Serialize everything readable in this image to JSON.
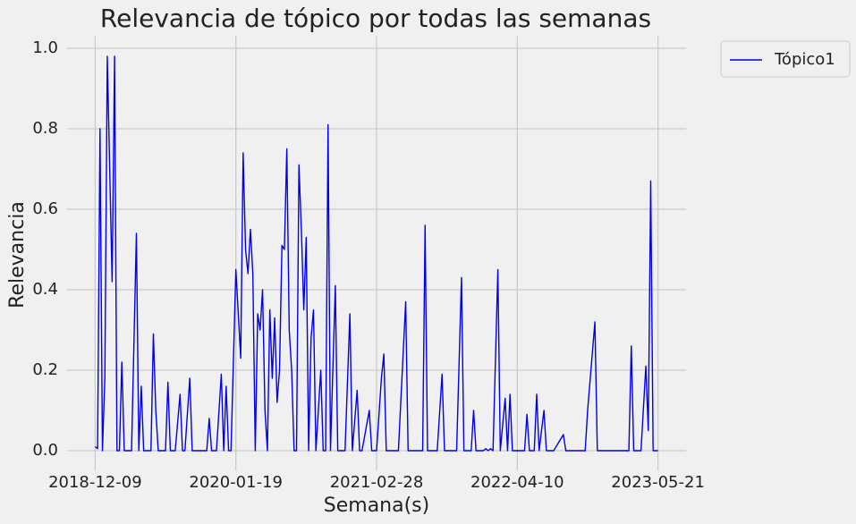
{
  "chart_data": {
    "type": "line",
    "title": "Relevancia de tópico por todas las semanas",
    "x_label": "Semana(s)",
    "y_label": "Relevancia",
    "x": [
      "2018-12-09",
      "2018-12-16",
      "2018-12-23",
      "2018-12-30",
      "2019-01-06",
      "2019-01-13",
      "2019-01-27",
      "2019-02-03",
      "2019-02-10",
      "2019-02-17",
      "2019-02-24",
      "2019-03-03",
      "2019-03-24",
      "2019-04-07",
      "2019-04-14",
      "2019-04-21",
      "2019-04-28",
      "2019-05-19",
      "2019-05-26",
      "2019-06-02",
      "2019-06-09",
      "2019-06-30",
      "2019-07-07",
      "2019-07-14",
      "2019-07-28",
      "2019-08-11",
      "2019-08-18",
      "2019-08-25",
      "2019-09-08",
      "2019-09-15",
      "2019-10-27",
      "2019-11-03",
      "2019-11-10",
      "2019-11-24",
      "2019-12-08",
      "2019-12-15",
      "2019-12-22",
      "2019-12-29",
      "2020-01-05",
      "2020-01-19",
      "2020-02-02",
      "2020-02-09",
      "2020-02-16",
      "2020-02-23",
      "2020-03-01",
      "2020-03-08",
      "2020-03-15",
      "2020-03-22",
      "2020-03-29",
      "2020-04-05",
      "2020-04-12",
      "2020-04-19",
      "2020-04-26",
      "2020-05-03",
      "2020-05-10",
      "2020-05-17",
      "2020-05-24",
      "2020-05-31",
      "2020-06-07",
      "2020-06-14",
      "2020-06-21",
      "2020-06-28",
      "2020-07-05",
      "2020-07-12",
      "2020-07-19",
      "2020-07-26",
      "2020-08-02",
      "2020-08-09",
      "2020-08-16",
      "2020-08-23",
      "2020-08-30",
      "2020-09-06",
      "2020-09-20",
      "2020-09-27",
      "2020-10-04",
      "2020-10-11",
      "2020-10-18",
      "2020-11-01",
      "2020-11-08",
      "2020-11-29",
      "2020-12-13",
      "2020-12-20",
      "2021-01-03",
      "2021-01-10",
      "2021-01-17",
      "2021-02-07",
      "2021-02-14",
      "2021-02-28",
      "2021-03-14",
      "2021-03-21",
      "2021-03-28",
      "2021-05-02",
      "2021-05-23",
      "2021-05-30",
      "2021-07-11",
      "2021-07-18",
      "2021-07-25",
      "2021-08-22",
      "2021-09-05",
      "2021-09-12",
      "2021-10-17",
      "2021-10-31",
      "2021-11-07",
      "2021-11-28",
      "2021-12-05",
      "2021-12-12",
      "2022-01-02",
      "2022-01-09",
      "2022-01-16",
      "2022-01-23",
      "2022-01-30",
      "2022-02-13",
      "2022-02-20",
      "2022-03-06",
      "2022-03-13",
      "2022-03-20",
      "2022-03-27",
      "2022-05-01",
      "2022-05-08",
      "2022-05-15",
      "2022-05-29",
      "2022-06-05",
      "2022-06-12",
      "2022-06-26",
      "2022-07-03",
      "2022-07-24",
      "2022-08-21",
      "2022-08-28",
      "2022-10-23",
      "2022-10-30",
      "2022-11-20",
      "2022-11-27",
      "2023-02-26",
      "2023-03-05",
      "2023-03-12",
      "2023-04-02",
      "2023-04-16",
      "2023-04-23",
      "2023-04-30",
      "2023-05-07",
      "2023-05-21"
    ],
    "series": [
      {
        "name": "Tópico1",
        "color": "#0000ee",
        "values": [
          0.01,
          0.005,
          0.8,
          0.0,
          0.18,
          0.98,
          0.42,
          0.98,
          0.0,
          0.0,
          0.22,
          0.0,
          0.0,
          0.54,
          0.0,
          0.16,
          0.0,
          0.0,
          0.29,
          0.1,
          0.0,
          0.0,
          0.17,
          0.0,
          0.0,
          0.14,
          0.0,
          0.0,
          0.18,
          0.0,
          0.0,
          0.08,
          0.0,
          0.0,
          0.19,
          0.0,
          0.16,
          0.0,
          0.0,
          0.45,
          0.23,
          0.74,
          0.5,
          0.44,
          0.55,
          0.44,
          0.0,
          0.34,
          0.3,
          0.4,
          0.1,
          0.0,
          0.35,
          0.18,
          0.33,
          0.12,
          0.2,
          0.51,
          0.5,
          0.75,
          0.3,
          0.2,
          0.0,
          0.0,
          0.71,
          0.55,
          0.35,
          0.53,
          0.0,
          0.28,
          0.35,
          0.0,
          0.2,
          0.0,
          0.0,
          0.81,
          0.0,
          0.41,
          0.0,
          0.0,
          0.34,
          0.0,
          0.15,
          0.0,
          0.0,
          0.1,
          0.0,
          0.0,
          0.18,
          0.24,
          0.0,
          0.0,
          0.37,
          0.0,
          0.0,
          0.56,
          0.0,
          0.0,
          0.19,
          0.0,
          0.0,
          0.43,
          0.0,
          0.0,
          0.1,
          0.0,
          0.0,
          0.005,
          0.0,
          0.005,
          0.0,
          0.45,
          0.0,
          0.13,
          0.0,
          0.14,
          0.0,
          0.0,
          0.09,
          0.0,
          0.0,
          0.14,
          0.0,
          0.1,
          0.0,
          0.0,
          0.04,
          0.0,
          0.0,
          0.1,
          0.32,
          0.0,
          0.0,
          0.26,
          0.0,
          0.0,
          0.21,
          0.05,
          0.67,
          0.0,
          0.0
        ]
      }
    ],
    "xlim": [
      "2018-09-19",
      "2023-08-10"
    ],
    "xticks": [
      "2018-12-09",
      "2020-01-19",
      "2021-02-28",
      "2022-04-10",
      "2023-05-21"
    ],
    "ylim": [
      -0.05,
      1.03
    ],
    "yticks": [
      {
        "value": 0,
        "label": "0.0"
      },
      {
        "value": 0.2,
        "label": "0.2"
      },
      {
        "value": 0.4,
        "label": "0.4"
      },
      {
        "value": 0.6,
        "label": "0.6"
      },
      {
        "value": 0.8,
        "label": "0.8"
      },
      {
        "value": 1,
        "label": "1.0"
      }
    ],
    "grid": true,
    "legend": "outside-upper-right"
  }
}
